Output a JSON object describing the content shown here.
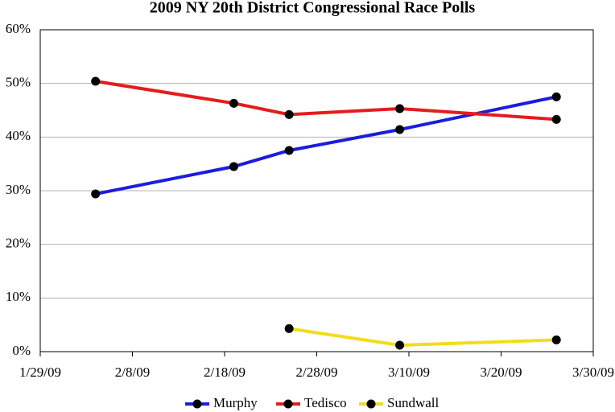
{
  "chart_data": {
    "type": "line",
    "title": "2009 NY 20th District Congressional Race Polls",
    "x": [
      "2009-02-04",
      "2009-02-19",
      "2009-02-25",
      "2009-03-09",
      "2009-03-26"
    ],
    "series": [
      {
        "name": "Murphy",
        "color": "#1c1ce0",
        "values": [
          29.4,
          34.5,
          37.5,
          41.4,
          47.5
        ]
      },
      {
        "name": "Tedisco",
        "color": "#e51c1c",
        "values": [
          50.4,
          46.3,
          44.2,
          45.3,
          43.3
        ]
      },
      {
        "name": "Sundwall",
        "color": "#f2dc1c",
        "values": [
          null,
          null,
          4.3,
          1.2,
          2.2
        ]
      }
    ],
    "xlim": [
      "2009-01-29",
      "2009-03-30"
    ],
    "xticks": [
      {
        "value": "2009-01-29",
        "label": "1/29/09"
      },
      {
        "value": "2009-02-08",
        "label": "2/8/09"
      },
      {
        "value": "2009-02-18",
        "label": "2/18/09"
      },
      {
        "value": "2009-02-28",
        "label": "2/28/09"
      },
      {
        "value": "2009-03-10",
        "label": "3/10/09"
      },
      {
        "value": "2009-03-20",
        "label": "3/20/09"
      },
      {
        "value": "2009-03-30",
        "label": "3/30/09"
      }
    ],
    "ylim": [
      0,
      60
    ],
    "yticks": [
      {
        "value": 0,
        "label": "0%"
      },
      {
        "value": 10,
        "label": "10%"
      },
      {
        "value": 20,
        "label": "20%"
      },
      {
        "value": 30,
        "label": "30%"
      },
      {
        "value": 40,
        "label": "40%"
      },
      {
        "value": 50,
        "label": "50%"
      },
      {
        "value": 60,
        "label": "60%"
      }
    ],
    "grid": true,
    "legend": "bottom"
  }
}
